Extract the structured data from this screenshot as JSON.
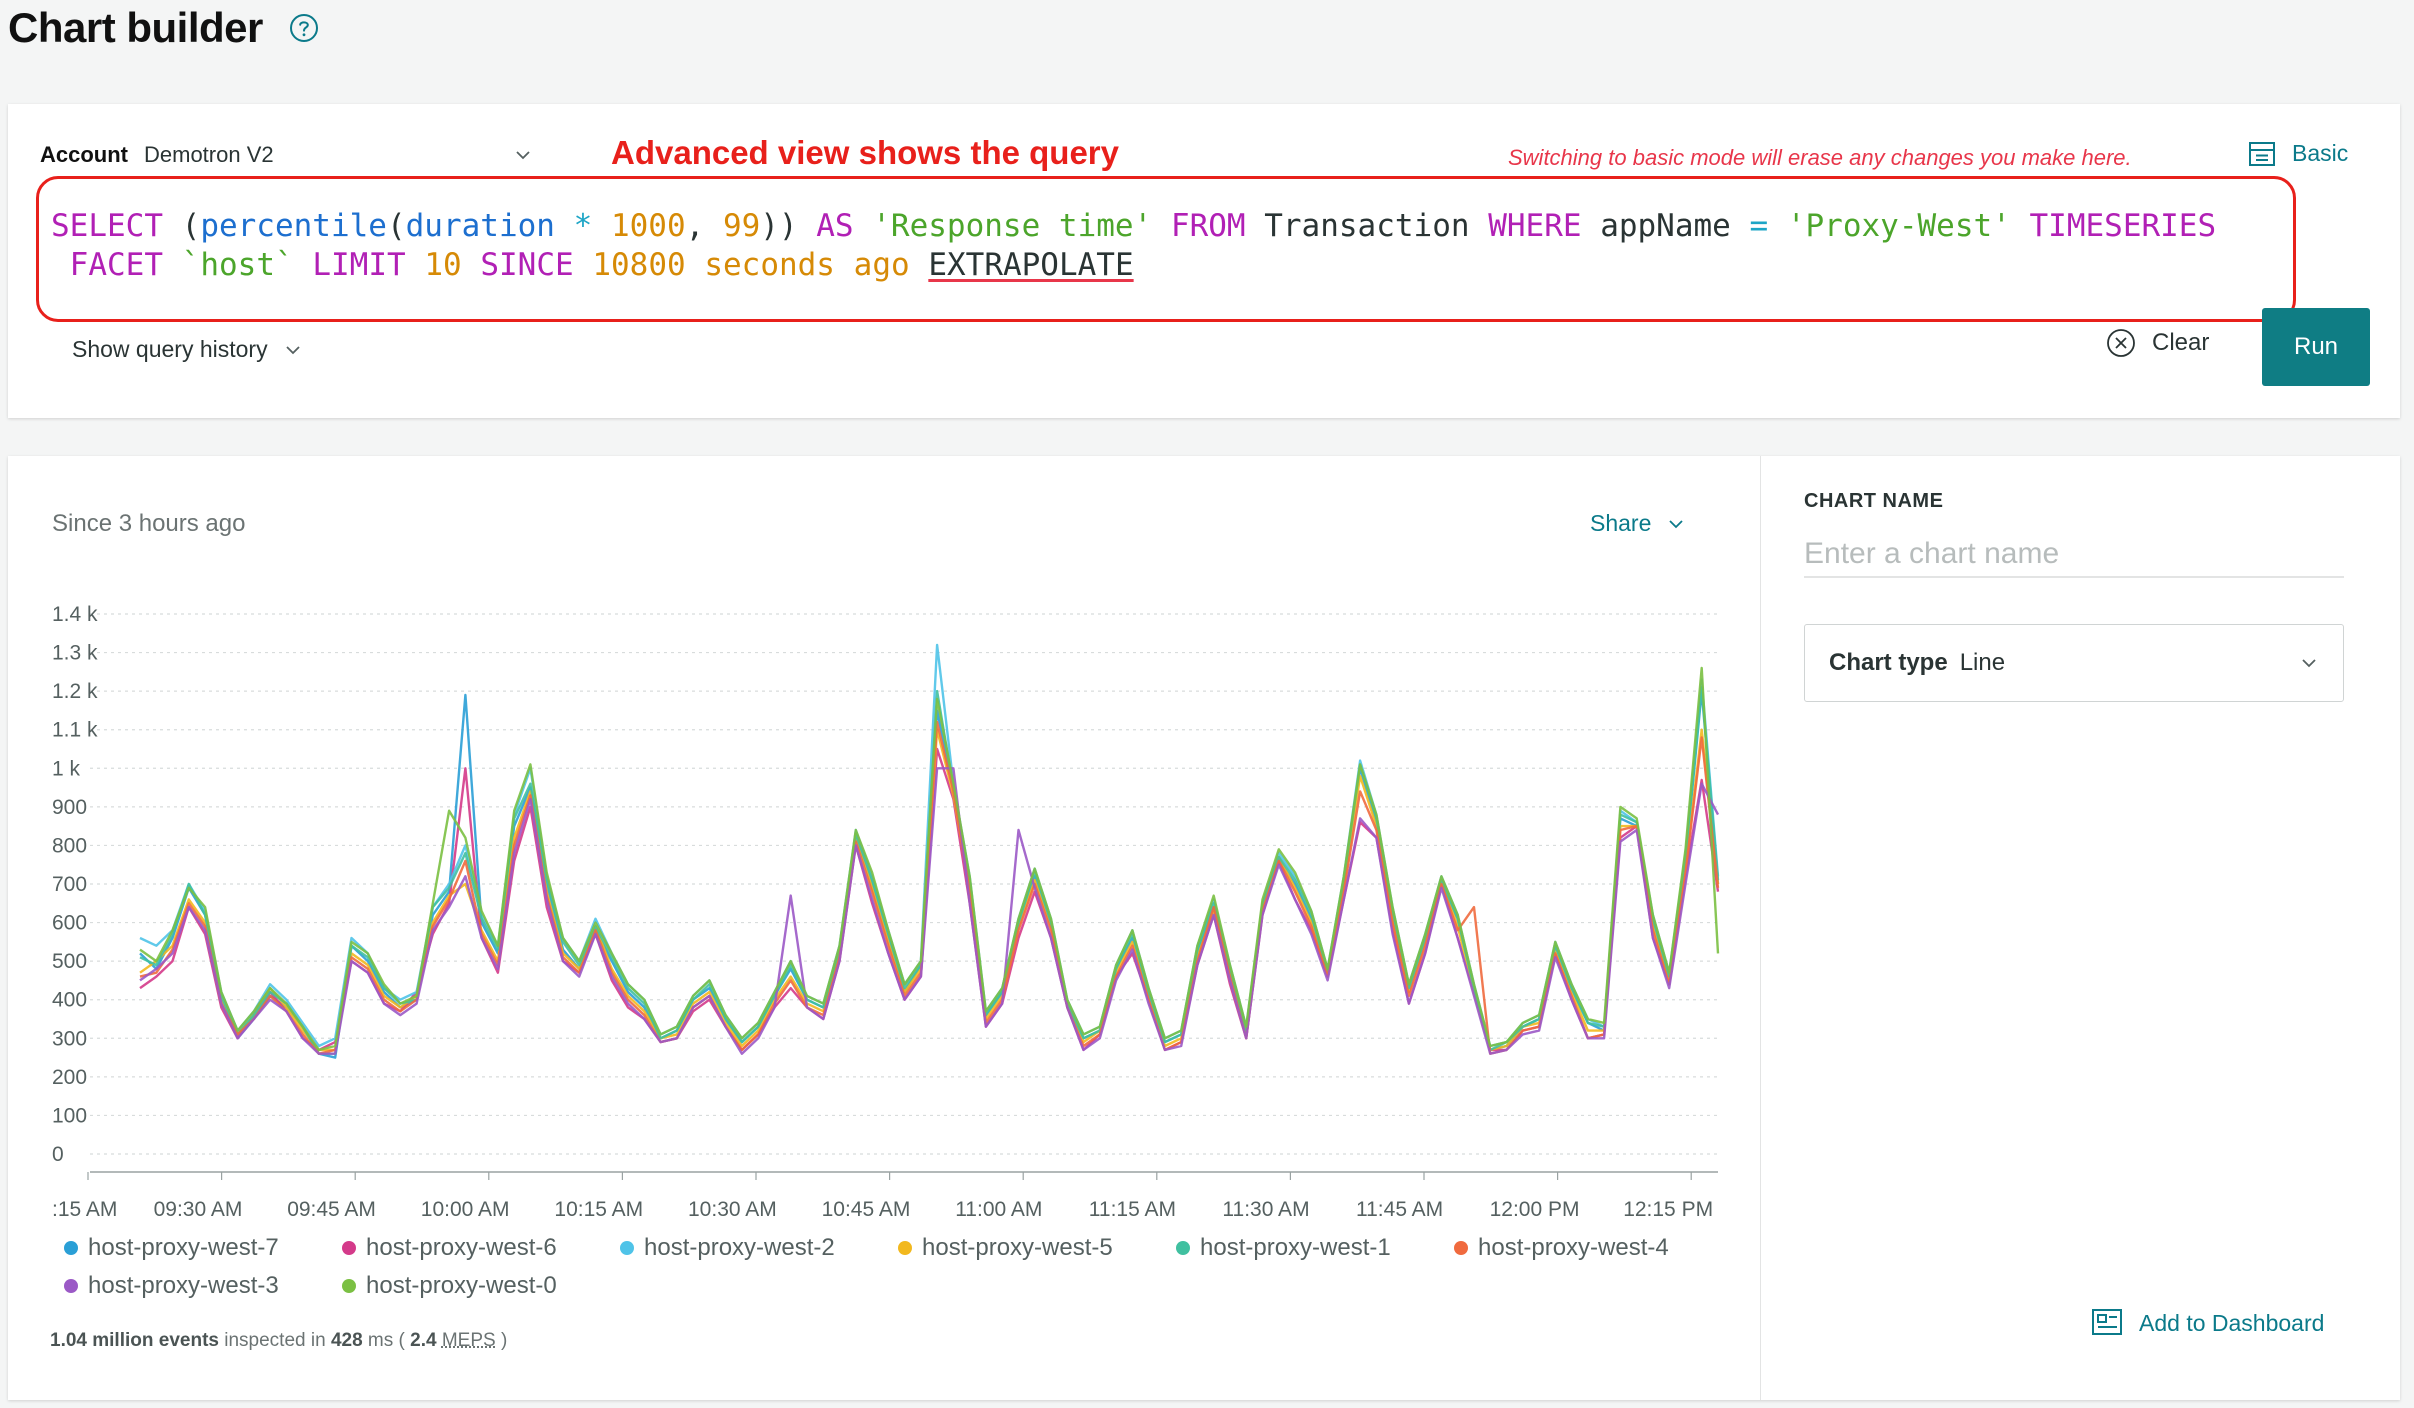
{
  "header": {
    "title": "Chart builder",
    "help_icon": "question-circle-icon"
  },
  "query_card": {
    "account_label": "Account",
    "account_value": "Demotron V2",
    "annotation": "Advanced view shows the query",
    "warning": "Switching to basic mode will erase any changes you make here.",
    "mode_toggle_label": "Basic",
    "query_text": "SELECT (percentile(duration * 1000, 99)) AS 'Response time' FROM Transaction WHERE appName = 'Proxy-West' TIMESERIES FACET `host` LIMIT 10 SINCE 10800 seconds ago EXTRAPOLATE",
    "history_label": "Show query history",
    "clear_label": "Clear",
    "run_label": "Run"
  },
  "chart_panel": {
    "since_label": "Since 3 hours ago",
    "share_label": "Share",
    "stats": {
      "events": "1.04 million events",
      "inspected_text": "inspected in",
      "ms_value": "428",
      "ms_unit": "ms (",
      "meps_value": "2.4",
      "meps_unit": "MEPS",
      "close_paren": ")"
    }
  },
  "side_panel": {
    "chart_name_label": "CHART NAME",
    "chart_name_placeholder": "Enter a chart name",
    "chart_type_label": "Chart type",
    "chart_type_value": "Line",
    "add_to_dashboard_label": "Add to Dashboard"
  },
  "chart_data": {
    "type": "line",
    "ylim": [
      0,
      1400
    ],
    "y_ticks": [
      "0",
      "100",
      "200",
      "300",
      "400",
      "500",
      "600",
      "700",
      "800",
      "900",
      "1 k",
      "1.1 k",
      "1.2 k",
      "1.3 k",
      "1.4 k"
    ],
    "x_ticks": [
      ":15 AM",
      "09:30 AM",
      "09:45 AM",
      "10:00 AM",
      "10:15 AM",
      "10:30 AM",
      "10:45 AM",
      "11:00 AM",
      "11:15 AM",
      "11:30 AM",
      "11:45 AM",
      "12:00 PM",
      "12:15 PM"
    ],
    "grid": true,
    "legend_position": "bottom",
    "x_start": "09:18 AM",
    "x_step_minutes": 2,
    "series": [
      {
        "name": "host-proxy-west-7",
        "color": "#2a9fd6",
        "values": [
          520,
          480,
          560,
          690,
          620,
          400,
          300,
          350,
          410,
          380,
          330,
          260,
          250,
          540,
          500,
          420,
          380,
          400,
          620,
          680,
          1190,
          600,
          520,
          850,
          950,
          700,
          530,
          480,
          580,
          500,
          420,
          380,
          300,
          320,
          400,
          430,
          350,
          290,
          330,
          410,
          480,
          400,
          380,
          520,
          820,
          700,
          560,
          420,
          490,
          1150,
          940,
          700,
          360,
          420,
          600,
          720,
          600,
          390,
          300,
          320,
          480,
          560,
          420,
          290,
          310,
          520,
          640,
          480,
          320,
          640,
          760,
          700,
          610,
          470,
          700,
          1000,
          860,
          620,
          430,
          560,
          700,
          610,
          430,
          270,
          280,
          330,
          350,
          540,
          430,
          340,
          320,
          870,
          850,
          600,
          460,
          760,
          1200,
          700
        ]
      },
      {
        "name": "host-proxy-west-6",
        "color": "#d43a8a",
        "values": [
          430,
          460,
          500,
          640,
          570,
          380,
          300,
          360,
          420,
          370,
          300,
          270,
          290,
          500,
          470,
          390,
          370,
          420,
          570,
          650,
          1000,
          560,
          470,
          760,
          900,
          640,
          500,
          470,
          570,
          450,
          380,
          350,
          290,
          300,
          370,
          400,
          330,
          270,
          310,
          380,
          430,
          380,
          350,
          500,
          800,
          650,
          520,
          400,
          460,
          1050,
          920,
          650,
          330,
          390,
          560,
          680,
          560,
          380,
          270,
          310,
          460,
          520,
          400,
          270,
          290,
          490,
          620,
          440,
          300,
          620,
          760,
          660,
          580,
          460,
          660,
          860,
          820,
          580,
          390,
          520,
          700,
          560,
          420,
          270,
          270,
          320,
          330,
          520,
          400,
          300,
          310,
          820,
          850,
          560,
          440,
          720,
          970,
          680
        ]
      },
      {
        "name": "host-proxy-west-2",
        "color": "#4fc3e8",
        "values": [
          560,
          540,
          580,
          700,
          630,
          420,
          320,
          370,
          440,
          400,
          340,
          280,
          300,
          560,
          520,
          430,
          400,
          420,
          640,
          700,
          800,
          620,
          540,
          880,
          1000,
          720,
          560,
          500,
          610,
          520,
          440,
          400,
          310,
          330,
          410,
          450,
          360,
          300,
          340,
          420,
          500,
          410,
          390,
          540,
          840,
          720,
          580,
          440,
          500,
          1320,
          960,
          720,
          370,
          430,
          610,
          740,
          610,
          400,
          310,
          330,
          490,
          580,
          430,
          300,
          320,
          540,
          660,
          490,
          330,
          650,
          780,
          720,
          630,
          480,
          720,
          1020,
          880,
          640,
          440,
          570,
          720,
          620,
          440,
          280,
          290,
          340,
          360,
          550,
          440,
          350,
          330,
          890,
          860,
          620,
          470,
          780,
          1230,
          720
        ]
      },
      {
        "name": "host-proxy-west-5",
        "color": "#f2b81e",
        "values": [
          470,
          500,
          540,
          660,
          600,
          400,
          310,
          360,
          430,
          380,
          320,
          270,
          270,
          520,
          490,
          410,
          380,
          410,
          600,
          670,
          700,
          580,
          500,
          820,
          940,
          680,
          520,
          480,
          590,
          480,
          410,
          370,
          300,
          310,
          390,
          420,
          340,
          280,
          320,
          400,
          460,
          390,
          370,
          520,
          830,
          690,
          550,
          420,
          480,
          1100,
          930,
          690,
          350,
          410,
          590,
          710,
          590,
          390,
          290,
          320,
          470,
          550,
          410,
          280,
          300,
          510,
          630,
          470,
          310,
          640,
          770,
          690,
          600,
          470,
          690,
          980,
          850,
          610,
          420,
          550,
          710,
          590,
          420,
          270,
          280,
          330,
          340,
          530,
          420,
          320,
          320,
          850,
          850,
          590,
          450,
          740,
          1100,
          700
        ]
      },
      {
        "name": "host-proxy-west-1",
        "color": "#40c0a0",
        "values": [
          510,
          490,
          570,
          700,
          620,
          410,
          310,
          360,
          420,
          390,
          330,
          260,
          260,
          540,
          510,
          430,
          390,
          400,
          640,
          690,
          780,
          610,
          530,
          870,
          960,
          710,
          550,
          490,
          590,
          510,
          430,
          390,
          300,
          320,
          400,
          440,
          350,
          290,
          330,
          410,
          490,
          400,
          380,
          530,
          830,
          710,
          570,
          430,
          490,
          1200,
          950,
          710,
          360,
          420,
          600,
          730,
          600,
          390,
          300,
          320,
          480,
          570,
          420,
          290,
          310,
          530,
          650,
          480,
          320,
          650,
          770,
          710,
          620,
          470,
          710,
          1010,
          870,
          630,
          430,
          560,
          710,
          610,
          430,
          270,
          290,
          330,
          350,
          540,
          430,
          340,
          330,
          880,
          860,
          610,
          460,
          770,
          1210,
          710
        ]
      },
      {
        "name": "host-proxy-west-4",
        "color": "#f06a3e",
        "values": [
          460,
          470,
          530,
          650,
          590,
          390,
          310,
          350,
          410,
          370,
          310,
          260,
          270,
          510,
          480,
          400,
          370,
          400,
          590,
          660,
          760,
          570,
          490,
          800,
          930,
          670,
          510,
          470,
          580,
          470,
          400,
          360,
          290,
          300,
          380,
          410,
          330,
          270,
          310,
          390,
          450,
          380,
          360,
          510,
          810,
          680,
          540,
          410,
          470,
          1120,
          940,
          680,
          340,
          400,
          580,
          700,
          580,
          380,
          280,
          310,
          460,
          540,
          400,
          270,
          290,
          500,
          640,
          460,
          300,
          630,
          760,
          680,
          590,
          460,
          680,
          940,
          840,
          600,
          410,
          540,
          700,
          580,
          640,
          260,
          270,
          320,
          330,
          520,
          410,
          300,
          310,
          840,
          850,
          580,
          440,
          730,
          1080,
          690
        ]
      },
      {
        "name": "host-proxy-west-3",
        "color": "#9b59c6",
        "values": [
          450,
          480,
          520,
          640,
          580,
          390,
          300,
          350,
          400,
          370,
          300,
          260,
          260,
          500,
          470,
          390,
          360,
          390,
          580,
          640,
          720,
          560,
          480,
          780,
          920,
          660,
          500,
          460,
          570,
          460,
          390,
          350,
          290,
          300,
          380,
          410,
          330,
          260,
          300,
          380,
          670,
          380,
          350,
          500,
          800,
          660,
          520,
          400,
          460,
          1000,
          1000,
          650,
          330,
          390,
          840,
          690,
          560,
          380,
          270,
          300,
          450,
          530,
          390,
          270,
          280,
          490,
          620,
          450,
          300,
          620,
          750,
          660,
          570,
          450,
          660,
          870,
          820,
          570,
          390,
          520,
          690,
          560,
          410,
          260,
          270,
          310,
          320,
          510,
          400,
          300,
          300,
          810,
          840,
          560,
          430,
          700,
          960,
          880
        ]
      },
      {
        "name": "host-proxy-west-0",
        "color": "#7bc043",
        "values": [
          530,
          500,
          580,
          690,
          640,
          420,
          320,
          370,
          430,
          390,
          330,
          270,
          280,
          550,
          520,
          440,
          390,
          410,
          650,
          890,
          820,
          630,
          540,
          890,
          1010,
          730,
          560,
          500,
          600,
          520,
          440,
          400,
          310,
          330,
          410,
          450,
          360,
          300,
          340,
          420,
          500,
          410,
          390,
          540,
          840,
          730,
          580,
          440,
          500,
          1180,
          960,
          720,
          370,
          430,
          610,
          740,
          610,
          400,
          310,
          330,
          490,
          580,
          430,
          300,
          320,
          540,
          670,
          490,
          330,
          660,
          790,
          730,
          630,
          480,
          720,
          1010,
          880,
          640,
          440,
          570,
          720,
          620,
          440,
          280,
          290,
          340,
          360,
          550,
          440,
          350,
          340,
          900,
          870,
          620,
          470,
          790,
          1260,
          520
        ]
      }
    ]
  }
}
